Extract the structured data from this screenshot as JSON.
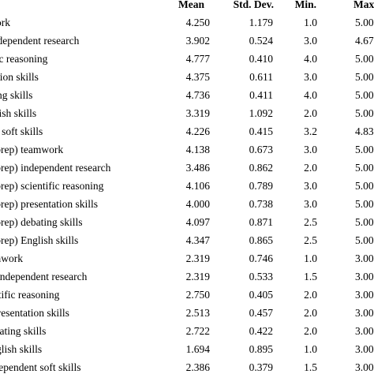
{
  "table": {
    "header": {
      "mean": "Mean",
      "sd": "Std. Dev.",
      "min": "Min.",
      "max": "Max"
    },
    "rows": [
      {
        "label": "teamwork",
        "mean": "4.250",
        "sd": "1.179",
        "min": "1.0",
        "max": "5.00"
      },
      {
        "label": "independent research",
        "mean": "3.902",
        "sd": "0.524",
        "min": "3.0",
        "max": "4.67"
      },
      {
        "label": "scientific reasoning",
        "mean": "4.777",
        "sd": "0.410",
        "min": "4.0",
        "max": "5.00"
      },
      {
        "label": "presentation skills",
        "mean": "4.375",
        "sd": "0.611",
        "min": "3.0",
        "max": "5.00"
      },
      {
        "label": "debating skills",
        "mean": "4.736",
        "sd": "0.411",
        "min": "4.0",
        "max": "5.00"
      },
      {
        "label": "English skills",
        "mean": "3.319",
        "sd": "1.092",
        "min": "2.0",
        "max": "5.00"
      },
      {
        "label": "science soft skills",
        "mean": "4.226",
        "sd": "0.415",
        "min": "3.2",
        "max": "4.83"
      },
      {
        "label": "(pre-prep) teamwork",
        "mean": "4.138",
        "sd": "0.673",
        "min": "3.0",
        "max": "5.00"
      },
      {
        "label": "(pre-prep) independent research",
        "mean": "3.486",
        "sd": "0.862",
        "min": "2.0",
        "max": "5.00"
      },
      {
        "label": "(pre-prep) scientific reasoning",
        "mean": "4.106",
        "sd": "0.789",
        "min": "3.0",
        "max": "5.00"
      },
      {
        "label": "(pre-prep) presentation skills",
        "mean": "4.000",
        "sd": "0.738",
        "min": "3.0",
        "max": "5.00"
      },
      {
        "label": "(pre-prep) debating skills",
        "mean": "4.097",
        "sd": "0.871",
        "min": "2.5",
        "max": "5.00"
      },
      {
        "label": "(pre-prep) English skills",
        "mean": "4.347",
        "sd": "0.865",
        "min": "2.5",
        "max": "5.00"
      },
      {
        "label": "teamwork",
        "mean": "2.319",
        "sd": "0.746",
        "min": "1.0",
        "max": "3.00"
      },
      {
        "label": "independent research",
        "mean": "2.319",
        "sd": "0.533",
        "min": "1.5",
        "max": "3.00"
      },
      {
        "label": "scientific reasoning",
        "mean": "2.750",
        "sd": "0.405",
        "min": "2.0",
        "max": "3.00"
      },
      {
        "label": "presentation skills",
        "mean": "2.513",
        "sd": "0.457",
        "min": "2.0",
        "max": "3.00"
      },
      {
        "label": "debating skills",
        "mean": "2.722",
        "sd": "0.422",
        "min": "2.0",
        "max": "3.00"
      },
      {
        "label": "English skills",
        "mean": "1.694",
        "sd": "0.895",
        "min": "1.0",
        "max": "3.00"
      },
      {
        "label": "independent soft skills",
        "mean": "2.386",
        "sd": "0.379",
        "min": "1.5",
        "max": "3.00"
      }
    ]
  }
}
